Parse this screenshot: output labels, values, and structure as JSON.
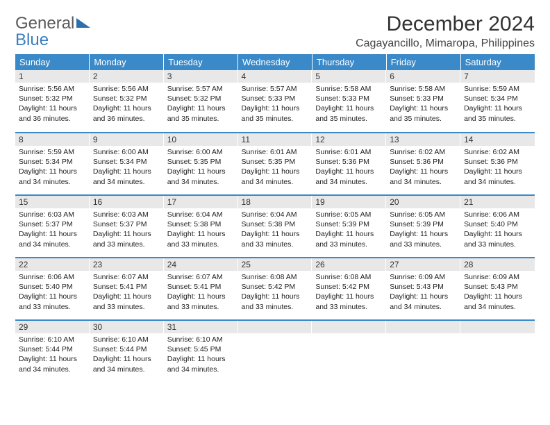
{
  "brand": {
    "part1": "General",
    "part2": "Blue"
  },
  "title": "December 2024",
  "location": "Cagayancillo, Mimaropa, Philippines",
  "colors": {
    "header_bg": "#3a8ac9",
    "header_text": "#ffffff",
    "daynum_bg": "#e8e8e8",
    "row_border": "#3a8ac9",
    "brand_gray": "#5a5a5a",
    "brand_blue": "#3a7ebf"
  },
  "weekdays": [
    "Sunday",
    "Monday",
    "Tuesday",
    "Wednesday",
    "Thursday",
    "Friday",
    "Saturday"
  ],
  "weeks": [
    [
      {
        "n": "1",
        "sunrise": "5:56 AM",
        "sunset": "5:32 PM",
        "daylight": "11 hours and 36 minutes."
      },
      {
        "n": "2",
        "sunrise": "5:56 AM",
        "sunset": "5:32 PM",
        "daylight": "11 hours and 36 minutes."
      },
      {
        "n": "3",
        "sunrise": "5:57 AM",
        "sunset": "5:32 PM",
        "daylight": "11 hours and 35 minutes."
      },
      {
        "n": "4",
        "sunrise": "5:57 AM",
        "sunset": "5:33 PM",
        "daylight": "11 hours and 35 minutes."
      },
      {
        "n": "5",
        "sunrise": "5:58 AM",
        "sunset": "5:33 PM",
        "daylight": "11 hours and 35 minutes."
      },
      {
        "n": "6",
        "sunrise": "5:58 AM",
        "sunset": "5:33 PM",
        "daylight": "11 hours and 35 minutes."
      },
      {
        "n": "7",
        "sunrise": "5:59 AM",
        "sunset": "5:34 PM",
        "daylight": "11 hours and 35 minutes."
      }
    ],
    [
      {
        "n": "8",
        "sunrise": "5:59 AM",
        "sunset": "5:34 PM",
        "daylight": "11 hours and 34 minutes."
      },
      {
        "n": "9",
        "sunrise": "6:00 AM",
        "sunset": "5:34 PM",
        "daylight": "11 hours and 34 minutes."
      },
      {
        "n": "10",
        "sunrise": "6:00 AM",
        "sunset": "5:35 PM",
        "daylight": "11 hours and 34 minutes."
      },
      {
        "n": "11",
        "sunrise": "6:01 AM",
        "sunset": "5:35 PM",
        "daylight": "11 hours and 34 minutes."
      },
      {
        "n": "12",
        "sunrise": "6:01 AM",
        "sunset": "5:36 PM",
        "daylight": "11 hours and 34 minutes."
      },
      {
        "n": "13",
        "sunrise": "6:02 AM",
        "sunset": "5:36 PM",
        "daylight": "11 hours and 34 minutes."
      },
      {
        "n": "14",
        "sunrise": "6:02 AM",
        "sunset": "5:36 PM",
        "daylight": "11 hours and 34 minutes."
      }
    ],
    [
      {
        "n": "15",
        "sunrise": "6:03 AM",
        "sunset": "5:37 PM",
        "daylight": "11 hours and 34 minutes."
      },
      {
        "n": "16",
        "sunrise": "6:03 AM",
        "sunset": "5:37 PM",
        "daylight": "11 hours and 33 minutes."
      },
      {
        "n": "17",
        "sunrise": "6:04 AM",
        "sunset": "5:38 PM",
        "daylight": "11 hours and 33 minutes."
      },
      {
        "n": "18",
        "sunrise": "6:04 AM",
        "sunset": "5:38 PM",
        "daylight": "11 hours and 33 minutes."
      },
      {
        "n": "19",
        "sunrise": "6:05 AM",
        "sunset": "5:39 PM",
        "daylight": "11 hours and 33 minutes."
      },
      {
        "n": "20",
        "sunrise": "6:05 AM",
        "sunset": "5:39 PM",
        "daylight": "11 hours and 33 minutes."
      },
      {
        "n": "21",
        "sunrise": "6:06 AM",
        "sunset": "5:40 PM",
        "daylight": "11 hours and 33 minutes."
      }
    ],
    [
      {
        "n": "22",
        "sunrise": "6:06 AM",
        "sunset": "5:40 PM",
        "daylight": "11 hours and 33 minutes."
      },
      {
        "n": "23",
        "sunrise": "6:07 AM",
        "sunset": "5:41 PM",
        "daylight": "11 hours and 33 minutes."
      },
      {
        "n": "24",
        "sunrise": "6:07 AM",
        "sunset": "5:41 PM",
        "daylight": "11 hours and 33 minutes."
      },
      {
        "n": "25",
        "sunrise": "6:08 AM",
        "sunset": "5:42 PM",
        "daylight": "11 hours and 33 minutes."
      },
      {
        "n": "26",
        "sunrise": "6:08 AM",
        "sunset": "5:42 PM",
        "daylight": "11 hours and 33 minutes."
      },
      {
        "n": "27",
        "sunrise": "6:09 AM",
        "sunset": "5:43 PM",
        "daylight": "11 hours and 34 minutes."
      },
      {
        "n": "28",
        "sunrise": "6:09 AM",
        "sunset": "5:43 PM",
        "daylight": "11 hours and 34 minutes."
      }
    ],
    [
      {
        "n": "29",
        "sunrise": "6:10 AM",
        "sunset": "5:44 PM",
        "daylight": "11 hours and 34 minutes."
      },
      {
        "n": "30",
        "sunrise": "6:10 AM",
        "sunset": "5:44 PM",
        "daylight": "11 hours and 34 minutes."
      },
      {
        "n": "31",
        "sunrise": "6:10 AM",
        "sunset": "5:45 PM",
        "daylight": "11 hours and 34 minutes."
      },
      {
        "empty": true
      },
      {
        "empty": true
      },
      {
        "empty": true
      },
      {
        "empty": true
      }
    ]
  ],
  "labels": {
    "sunrise": "Sunrise: ",
    "sunset": "Sunset: ",
    "daylight": "Daylight: "
  }
}
